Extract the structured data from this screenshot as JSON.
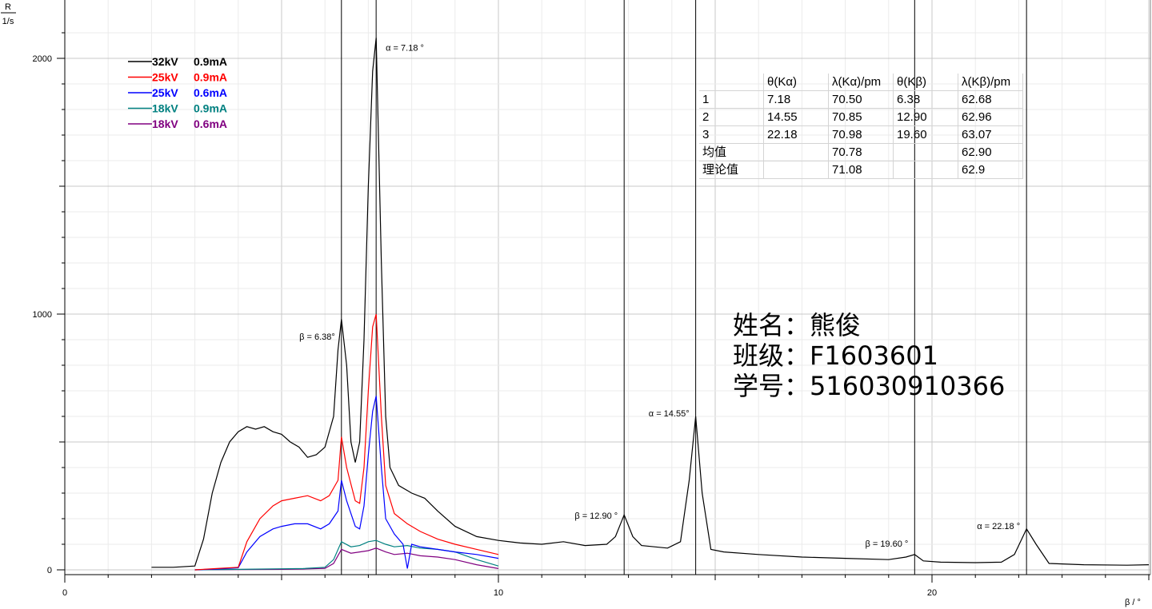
{
  "student": {
    "name_line": "姓名：熊俊",
    "class_line": "班级：F1603601",
    "id_line": "学号：516030910366"
  },
  "table": {
    "headers": [
      "",
      "θ(Kα)",
      "λ(Kα)/pm",
      "θ(Kβ)",
      "λ(Kβ)/pm"
    ],
    "rows": [
      [
        "1",
        "7.18",
        "70.50",
        "6.38",
        "62.68"
      ],
      [
        "2",
        "14.55",
        "70.85",
        "12.90",
        "62.96"
      ],
      [
        "3",
        "22.18",
        "70.98",
        "19.60",
        "63.07"
      ],
      [
        "均值",
        "",
        "70.78",
        "",
        "62.90"
      ],
      [
        "理论值",
        "",
        "71.08",
        "",
        "62.9"
      ]
    ]
  },
  "chart_data": {
    "type": "line",
    "ylabel_top": "R",
    "ylabel_bottom": "1/s",
    "xlabel": "β / °",
    "xlim": [
      0,
      25.0
    ],
    "ylim": [
      0,
      2100
    ],
    "x_ticks": [
      0,
      10,
      20
    ],
    "y_ticks": [
      0,
      1000,
      2000
    ],
    "grid": true,
    "legend_position": "top-left",
    "series": [
      {
        "name": "32kV  0.9mA",
        "color": "#000000",
        "x": [
          2.0,
          2.5,
          3.0,
          3.2,
          3.4,
          3.6,
          3.8,
          4.0,
          4.2,
          4.4,
          4.6,
          4.8,
          5.0,
          5.2,
          5.4,
          5.6,
          5.8,
          6.0,
          6.2,
          6.3,
          6.38,
          6.5,
          6.6,
          6.7,
          6.8,
          6.9,
          7.0,
          7.1,
          7.18,
          7.3,
          7.4,
          7.5,
          7.7,
          8.0,
          8.3,
          8.6,
          9.0,
          9.5,
          10.0,
          10.5,
          11.0,
          11.5,
          12.0,
          12.5,
          12.7,
          12.9,
          13.1,
          13.3,
          13.6,
          13.9,
          14.2,
          14.4,
          14.55,
          14.7,
          14.9,
          15.2,
          16.0,
          17.0,
          18.0,
          19.0,
          19.4,
          19.6,
          19.8,
          20.2,
          21.0,
          21.6,
          21.9,
          22.18,
          22.4,
          22.7,
          23.5,
          24.5,
          25.0
        ],
        "y": [
          10,
          10,
          15,
          120,
          300,
          420,
          500,
          540,
          560,
          550,
          560,
          540,
          530,
          500,
          480,
          440,
          450,
          480,
          600,
          860,
          980,
          800,
          500,
          420,
          500,
          900,
          1500,
          1950,
          2080,
          1200,
          600,
          400,
          330,
          300,
          280,
          230,
          170,
          130,
          115,
          105,
          100,
          110,
          95,
          100,
          130,
          215,
          130,
          95,
          90,
          85,
          110,
          350,
          600,
          300,
          80,
          70,
          60,
          50,
          45,
          40,
          50,
          60,
          35,
          30,
          28,
          30,
          60,
          160,
          100,
          25,
          20,
          18,
          20
        ]
      },
      {
        "name": "25kV  0.9mA",
        "color": "#ff0000",
        "x": [
          3.0,
          3.5,
          4.0,
          4.2,
          4.5,
          4.8,
          5.0,
          5.3,
          5.6,
          5.9,
          6.1,
          6.3,
          6.38,
          6.5,
          6.7,
          6.8,
          6.9,
          7.0,
          7.1,
          7.18,
          7.3,
          7.4,
          7.6,
          7.9,
          8.2,
          8.6,
          9.0,
          9.5,
          10.0
        ],
        "y": [
          0,
          5,
          10,
          110,
          200,
          250,
          270,
          280,
          290,
          270,
          290,
          350,
          520,
          400,
          270,
          260,
          400,
          700,
          950,
          1000,
          600,
          330,
          220,
          180,
          150,
          120,
          100,
          80,
          60
        ]
      },
      {
        "name": "25kV  0.6mA",
        "color": "#0000ff",
        "x": [
          3.0,
          3.5,
          4.0,
          4.2,
          4.5,
          4.8,
          5.0,
          5.3,
          5.6,
          5.9,
          6.1,
          6.3,
          6.38,
          6.5,
          6.7,
          6.8,
          6.9,
          7.0,
          7.1,
          7.18,
          7.3,
          7.4,
          7.6,
          7.8,
          7.9,
          8.0,
          8.2,
          8.6,
          9.0,
          9.5,
          10.0
        ],
        "y": [
          0,
          3,
          8,
          70,
          130,
          160,
          170,
          180,
          180,
          160,
          180,
          230,
          350,
          270,
          170,
          160,
          250,
          450,
          620,
          680,
          400,
          200,
          140,
          100,
          5,
          100,
          90,
          80,
          70,
          60,
          45
        ]
      },
      {
        "name": "18kV  0.9mA",
        "color": "#008080",
        "x": [
          3.0,
          4.0,
          5.0,
          5.5,
          6.0,
          6.2,
          6.38,
          6.6,
          6.8,
          7.0,
          7.18,
          7.4,
          7.6,
          7.9,
          8.2,
          8.6,
          9.0,
          9.5,
          10.0
        ],
        "y": [
          0,
          2,
          4,
          5,
          10,
          40,
          110,
          90,
          95,
          110,
          115,
          100,
          90,
          95,
          85,
          80,
          70,
          40,
          15
        ]
      },
      {
        "name": "18kV  0.6mA",
        "color": "#800080",
        "x": [
          3.0,
          4.0,
          5.0,
          5.5,
          6.0,
          6.2,
          6.38,
          6.6,
          6.8,
          7.0,
          7.18,
          7.4,
          7.6,
          7.9,
          8.2,
          8.6,
          9.0,
          9.5,
          10.0
        ],
        "y": [
          0,
          1,
          2,
          3,
          6,
          25,
          80,
          65,
          70,
          75,
          85,
          70,
          60,
          65,
          55,
          50,
          40,
          20,
          5
        ]
      }
    ],
    "vertical_markers": [
      6.38,
      7.18,
      12.9,
      14.55,
      19.6,
      22.18
    ],
    "annotations": [
      {
        "text": "α = 7.18 °",
        "x": 7.18,
        "y": 2030
      },
      {
        "text": "β =  6.38°",
        "x": 6.38,
        "y": 900
      },
      {
        "text": "α = 14.55°",
        "x": 14.55,
        "y": 600
      },
      {
        "text": "β = 12.90 °",
        "x": 12.9,
        "y": 200
      },
      {
        "text": "β = 19.60 °",
        "x": 19.6,
        "y": 90
      },
      {
        "text": "α = 22.18 °",
        "x": 22.18,
        "y": 160
      }
    ]
  }
}
